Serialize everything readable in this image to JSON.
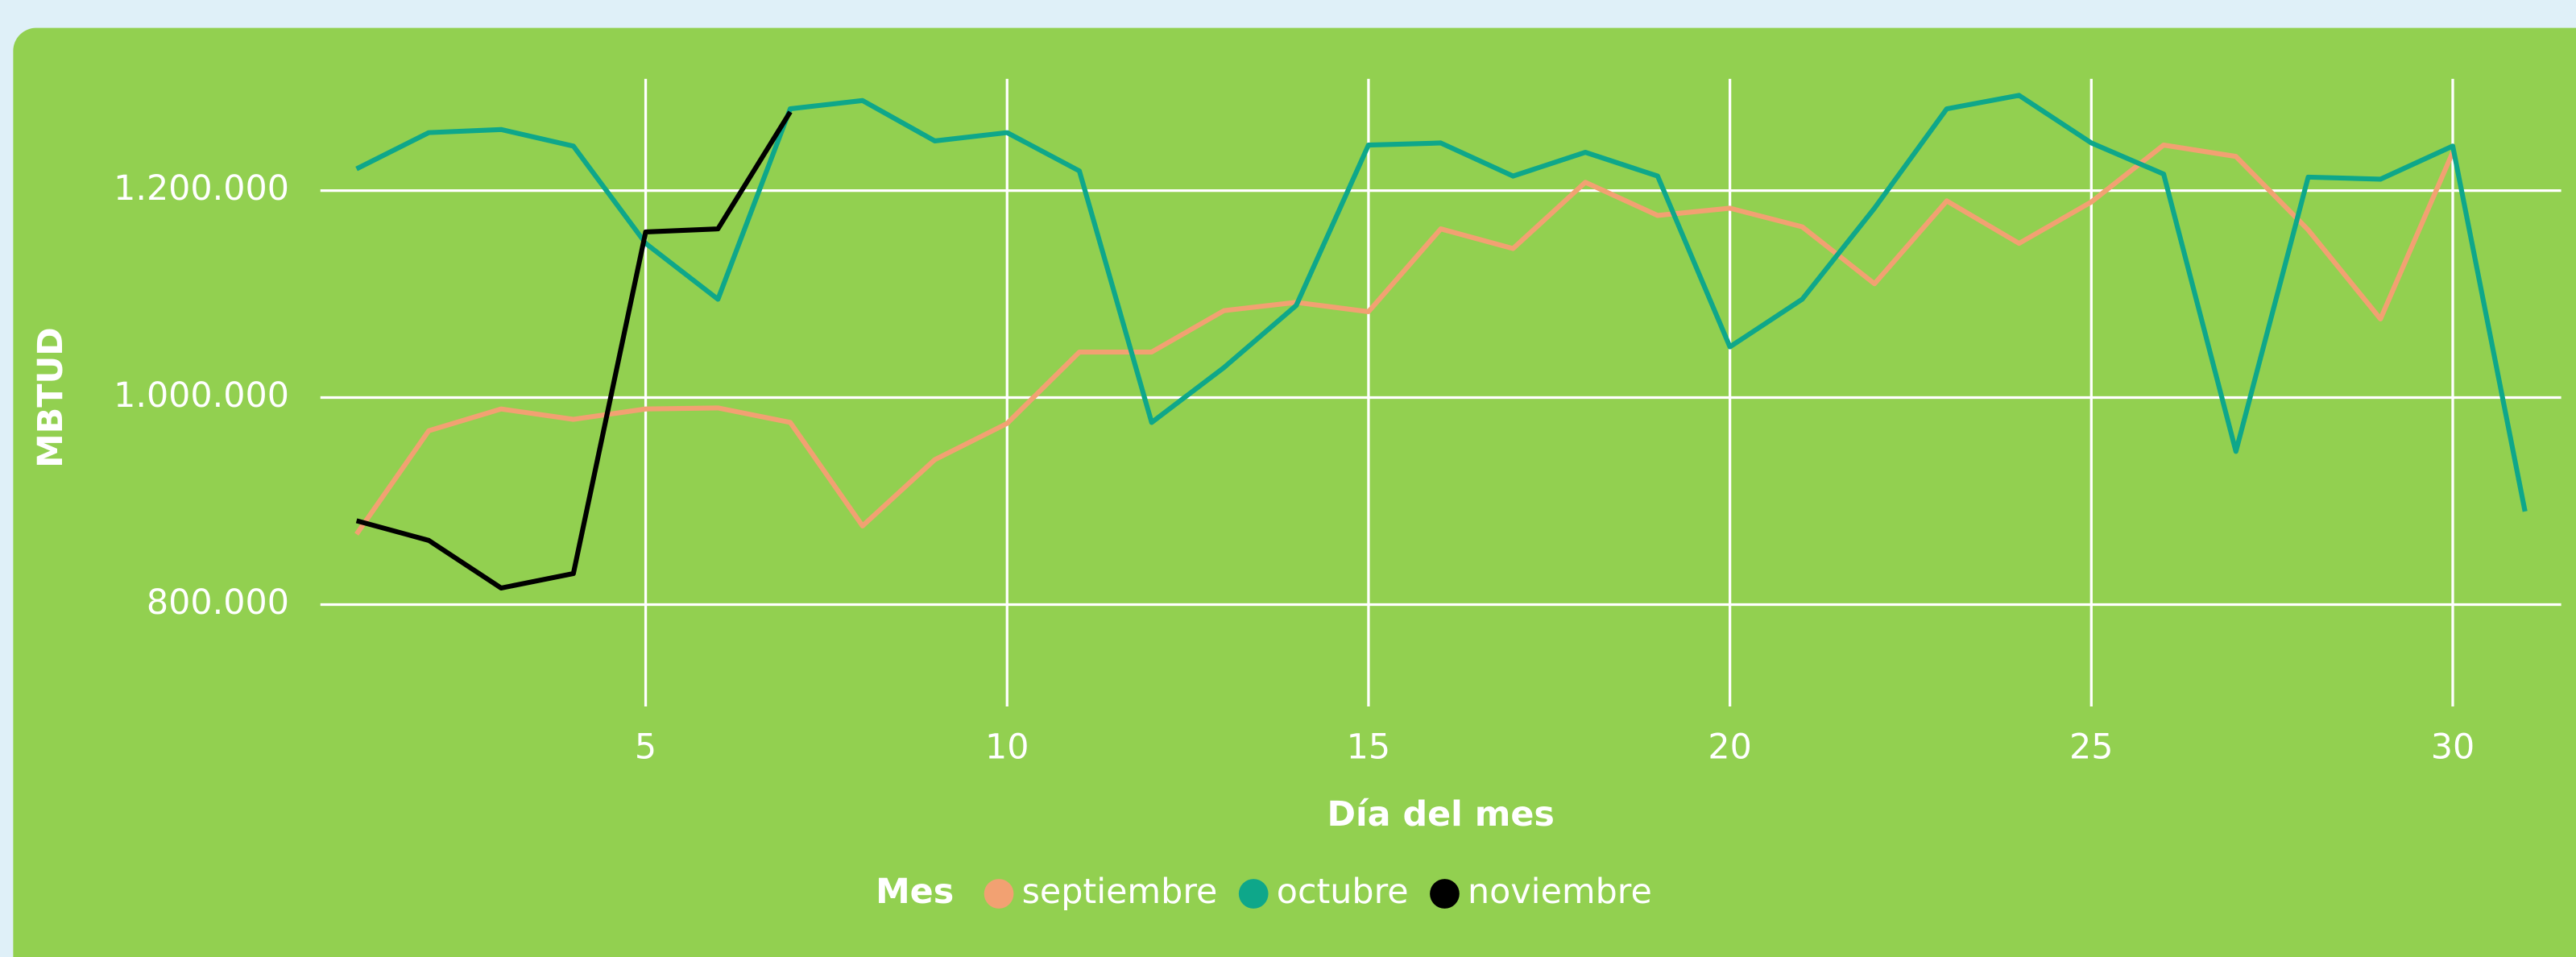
{
  "chart_data": {
    "type": "line",
    "y_label": "MBTUD",
    "x_label": "Día del mes",
    "legend_title": "Mes",
    "grid": true,
    "xlim": [
      0.5,
      31.5
    ],
    "xticks": [
      5,
      10,
      15,
      20,
      25,
      30
    ],
    "ylim": [
      700000,
      1310000
    ],
    "yticks": [
      {
        "value": 800000,
        "label": "800.000"
      },
      {
        "value": 1000000,
        "label": "1.000.000"
      },
      {
        "value": 1200000,
        "label": "1.200.000"
      }
    ],
    "x": [
      1,
      2,
      3,
      4,
      5,
      6,
      7,
      8,
      9,
      10,
      11,
      12,
      13,
      14,
      15,
      16,
      17,
      18,
      19,
      20,
      21,
      22,
      23,
      24,
      25,
      26,
      27,
      28,
      29,
      30,
      31
    ],
    "series": [
      {
        "name": "septiembre",
        "color": "#f2a172",
        "values": [
          868000,
          968000,
          989000,
          979000,
          989000,
          990000,
          976000,
          876000,
          940000,
          975000,
          1044000,
          1044000,
          1084000,
          1092000,
          1083000,
          1163000,
          1144000,
          1208000,
          1176000,
          1183000,
          1165000,
          1110000,
          1190000,
          1149000,
          1189000,
          1244000,
          1233000,
          1162000,
          1076000,
          1237000,
          null
        ]
      },
      {
        "name": "octubre",
        "color": "#0ea78a",
        "values": [
          1221000,
          1256000,
          1259000,
          1243000,
          1149000,
          1095000,
          1279000,
          1287000,
          1248000,
          1256000,
          1219000,
          976000,
          1029000,
          1089000,
          1244000,
          1246000,
          1214000,
          1237000,
          1214000,
          1049000,
          1095000,
          1183000,
          1279000,
          1292000,
          1246000,
          1216000,
          948000,
          1213000,
          1211000,
          1243000,
          890000
        ]
      },
      {
        "name": "noviembre",
        "color": "#000000",
        "values": [
          881000,
          862000,
          816000,
          830000,
          1160000,
          1163000,
          1276000,
          null,
          null,
          null,
          null,
          null,
          null,
          null,
          null,
          null,
          null,
          null,
          null,
          null,
          null,
          null,
          null,
          null,
          null,
          null,
          null,
          null,
          null,
          null,
          null
        ]
      }
    ]
  }
}
